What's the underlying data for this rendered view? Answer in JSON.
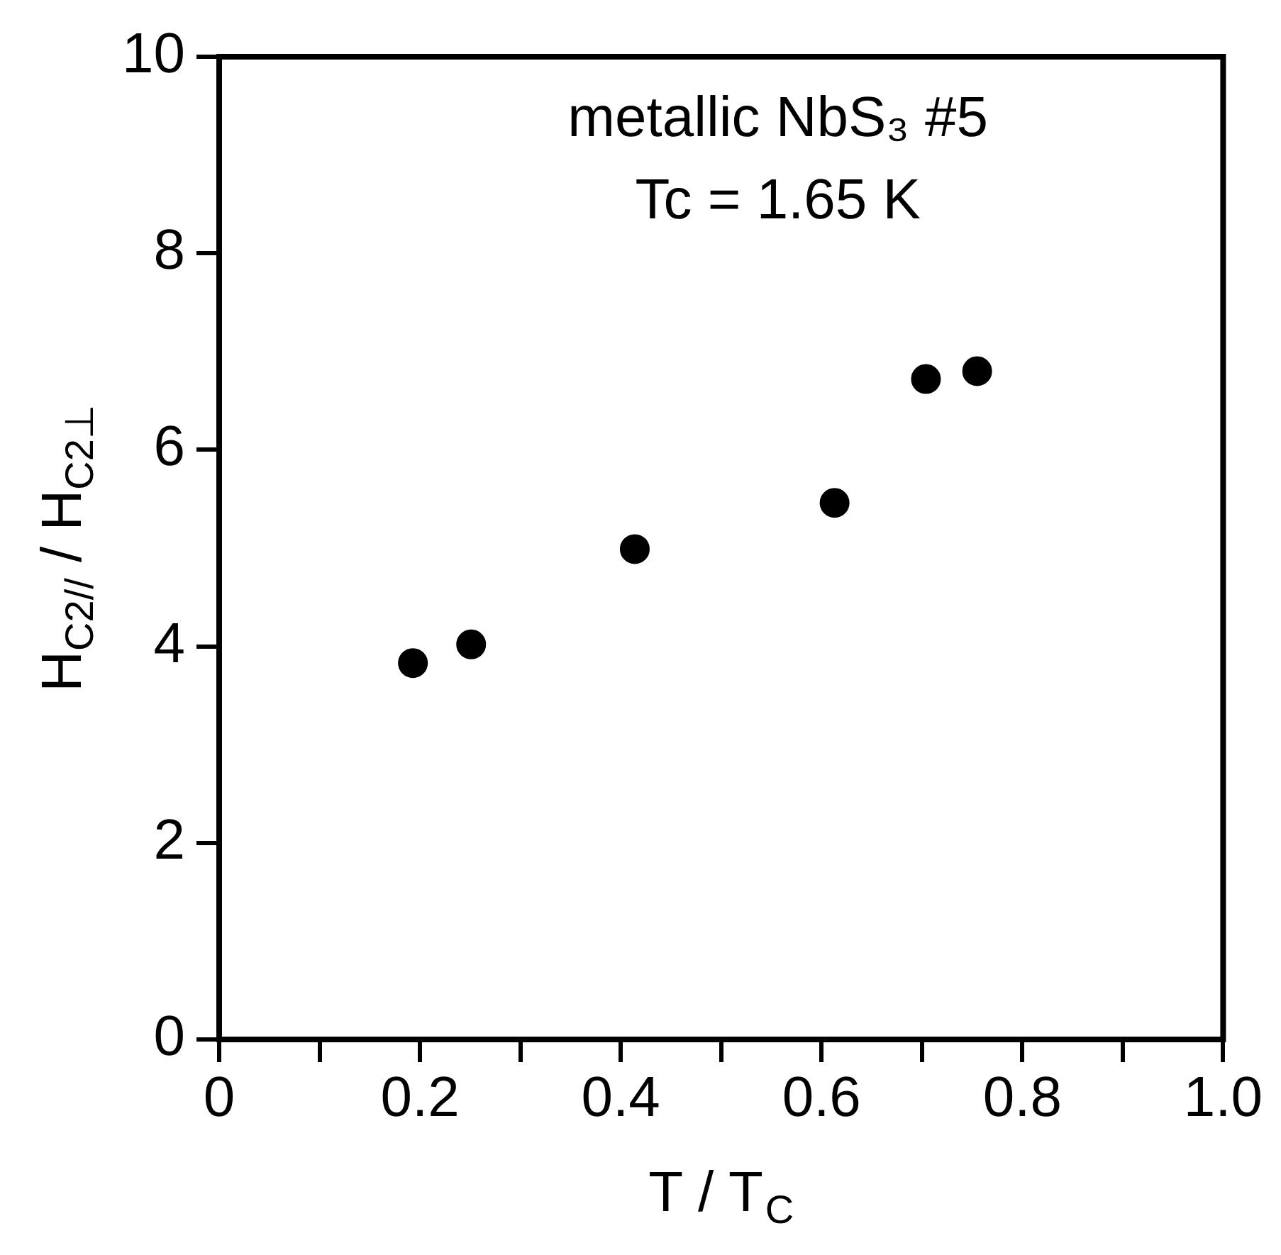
{
  "chart_data": {
    "type": "scatter",
    "xlabel": "T / T$_{C}$",
    "ylabel": "H$_{C2//}$ / H$_{C2⊥}$",
    "annotations": [
      "metallic NbS₃ #5",
      "Tc = 1.65 K"
    ],
    "series": [
      {
        "color": "#000000",
        "x": [
          0.193,
          0.251,
          0.414,
          0.613,
          0.704,
          0.755
        ],
        "values": [
          3.83,
          4.02,
          4.99,
          5.46,
          6.72,
          6.8
        ]
      }
    ],
    "xlim": [
      0,
      1
    ],
    "xticks": [
      0,
      {
        "value": 0.1,
        "label": null
      },
      {
        "value": 0.2,
        "label": "0.2"
      },
      {
        "value": 0.3,
        "label": null
      },
      {
        "value": 0.4,
        "label": "0.4"
      },
      {
        "value": 0.5,
        "label": null
      },
      {
        "value": 0.6,
        "label": "0.6"
      },
      {
        "value": 0.7,
        "label": null
      },
      {
        "value": 0.8,
        "label": "0.8"
      },
      {
        "value": 0.9,
        "label": null
      },
      {
        "value": 1,
        "label": "1.0"
      }
    ],
    "ylim": [
      0,
      10
    ],
    "yticks": [
      0,
      2,
      4,
      6,
      8,
      10
    ],
    "grid": false,
    "legend": false,
    "marker": "circle"
  }
}
